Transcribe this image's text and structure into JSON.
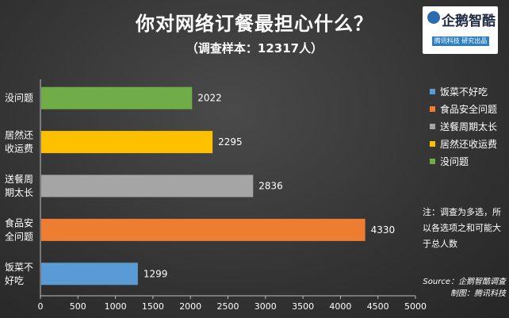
{
  "header": {
    "title": "你对网络订餐最担心什么？",
    "subtitle": "（调查样本：12317人）"
  },
  "logo": {
    "name": "企鹅智酷",
    "sub": "腾讯科技 研究出品"
  },
  "note": "注：调查为多选，所以各选项之和可能大于总人数",
  "source": {
    "line1": "Source：企鹅智酷调查",
    "line2": "制图：腾讯科技"
  },
  "chart_data": {
    "type": "bar",
    "orientation": "horizontal",
    "title": "你对网络订餐最担心什么？",
    "subtitle": "（调查样本：12317人）",
    "categories": [
      "没问题",
      "居然还收运费",
      "送餐周期太长",
      "食品安全问题",
      "饭菜不好吃"
    ],
    "category_labels": [
      [
        "没问题"
      ],
      [
        "居然还",
        "收运费"
      ],
      [
        "送餐周",
        "期太长"
      ],
      [
        "食品安",
        "全问题"
      ],
      [
        "饭菜不",
        "好吃"
      ]
    ],
    "values": [
      2022,
      2295,
      2836,
      4330,
      1299
    ],
    "colors": [
      "#70ad47",
      "#ffc000",
      "#a5a5a5",
      "#ed7d31",
      "#5b9bd5"
    ],
    "xlim": [
      0,
      5000
    ],
    "xticks": [
      0,
      500,
      1000,
      1500,
      2000,
      2500,
      3000,
      3500,
      4000,
      4500,
      5000
    ],
    "grid": false,
    "legend_position": "right",
    "legend": [
      {
        "label": "饭菜不好吃",
        "color": "#5b9bd5"
      },
      {
        "label": "食品安全问题",
        "color": "#ed7d31"
      },
      {
        "label": "送餐周期太长",
        "color": "#a5a5a5"
      },
      {
        "label": "居然还收运费",
        "color": "#ffc000"
      },
      {
        "label": "没问题",
        "color": "#70ad47"
      }
    ]
  }
}
